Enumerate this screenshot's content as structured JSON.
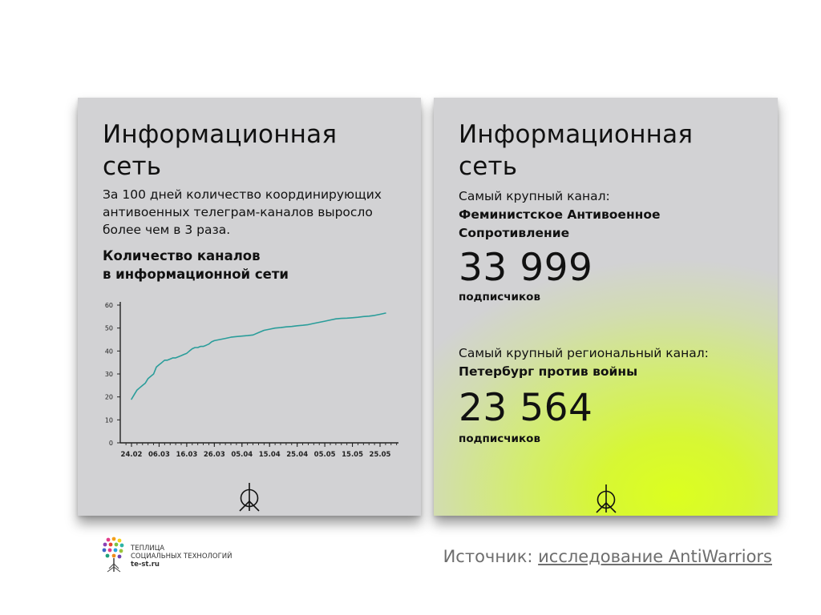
{
  "left_card": {
    "title_line1": "Информационная",
    "title_line2": "сеть",
    "lead_line1": "За 100 дней количество координирующих",
    "lead_line2": "антивоенных телеграм-каналов выросло",
    "lead_line3": "более чем в 3 раза.",
    "chart_heading_line1": "Количество каналов",
    "chart_heading_line2": "в информационной сети",
    "icon": "peace-sign-icon"
  },
  "right_card": {
    "title_line1": "Информационная",
    "title_line2": "сеть",
    "largest_label": "Самый крупный канал:",
    "largest_name_line1": "Феминистское Антивоенное",
    "largest_name_line2": "Сопротивление",
    "largest_count": "33 999",
    "largest_unit": "подписчиков",
    "regional_label": "Самый крупный региональный канал:",
    "regional_name": "Петербург против войны",
    "regional_count": "23 564",
    "regional_unit": "подписчиков",
    "icon": "peace-sign-icon",
    "accent_color": "#dcff1f"
  },
  "footer": {
    "logo_line1": "ТЕПЛИЦА",
    "logo_line2": "СОЦИАЛЬНЫХ ТЕХНОЛОГИЙ",
    "logo_domain": "te-st.ru",
    "source_prefix": "Источник: ",
    "source_link": "исследование AntiWarriors"
  },
  "chart_data": {
    "type": "line",
    "title": "",
    "xlabel": "",
    "ylabel": "",
    "ylim": [
      0,
      60
    ],
    "yticks": [
      0,
      10,
      20,
      30,
      40,
      50,
      60
    ],
    "xtick_labels": [
      "24.02",
      "06.03",
      "16.03",
      "26.03",
      "05.04",
      "15.04",
      "25.04",
      "05.05",
      "15.05",
      "25.05"
    ],
    "grid": false,
    "line_color": "#2a9d9a",
    "series": [
      {
        "x": [
          "24.02",
          "25.02",
          "26.02",
          "27.02",
          "28.02",
          "01.03",
          "02.03",
          "03.03",
          "04.03",
          "05.03",
          "06.03",
          "07.03",
          "08.03",
          "09.03",
          "10.03",
          "11.03",
          "12.03",
          "13.03",
          "14.03",
          "15.03",
          "16.03",
          "17.03",
          "18.03",
          "19.03",
          "20.03",
          "21.03",
          "22.03",
          "23.03",
          "24.03",
          "25.03",
          "26.03",
          "28.03",
          "30.03",
          "01.04",
          "03.04",
          "05.04",
          "07.04",
          "09.04",
          "11.04",
          "13.04",
          "15.04",
          "17.04",
          "19.04",
          "21.04",
          "23.04",
          "25.04",
          "27.04",
          "29.04",
          "01.05",
          "03.05",
          "05.05",
          "07.05",
          "09.05",
          "11.05",
          "13.05",
          "15.05",
          "17.05",
          "19.05",
          "21.05",
          "23.05",
          "25.05",
          "27.05"
        ],
        "values": [
          19,
          21,
          23,
          24,
          25,
          26,
          28,
          29,
          30,
          33,
          34,
          35,
          36,
          36,
          36.5,
          37,
          37,
          37.5,
          38,
          38.5,
          39,
          40,
          41,
          41.5,
          41.5,
          42,
          42,
          42.5,
          43,
          44,
          44.5,
          45,
          45.5,
          46,
          46.3,
          46.5,
          46.7,
          47,
          48,
          49,
          49.5,
          50,
          50.2,
          50.5,
          50.7,
          51,
          51.2,
          51.5,
          52,
          52.5,
          53,
          53.5,
          54,
          54.2,
          54.3,
          54.5,
          54.7,
          55,
          55.2,
          55.5,
          56,
          56.5
        ]
      }
    ]
  }
}
